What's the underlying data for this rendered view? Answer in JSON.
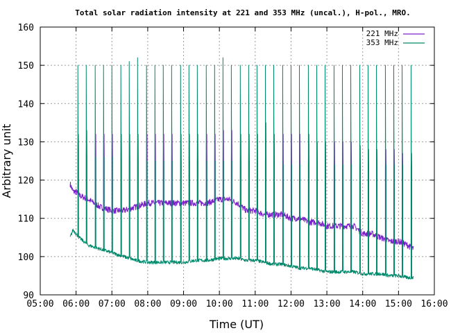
{
  "chart_data": {
    "type": "line",
    "title": "Total solar radiation intensity at 221 and 353 MHz (uncal.), H-pol., MRO.",
    "xlabel": "Time (UT)",
    "ylabel": "Arbitrary unit",
    "xlim": [
      "05:00",
      "16:00"
    ],
    "ylim": [
      90,
      160
    ],
    "x_ticks": [
      "05:00",
      "06:00",
      "07:00",
      "08:00",
      "09:00",
      "10:00",
      "11:00",
      "12:00",
      "13:00",
      "14:00",
      "15:00",
      "16:00"
    ],
    "y_ticks": [
      90,
      100,
      110,
      120,
      130,
      140,
      150,
      160
    ],
    "grid": true,
    "legend_position": "top-right",
    "series": [
      {
        "name": "221 MHz",
        "color": "#7b20c8",
        "x": [
          "05:50",
          "05:55",
          "06:00",
          "06:05",
          "06:20",
          "06:40",
          "07:00",
          "07:20",
          "07:40",
          "08:00",
          "08:20",
          "08:40",
          "09:00",
          "09:20",
          "09:40",
          "10:00",
          "10:15",
          "10:30",
          "10:45",
          "11:00",
          "11:15",
          "11:30",
          "11:45",
          "12:00",
          "12:15",
          "12:30",
          "12:45",
          "13:00",
          "13:15",
          "13:30",
          "13:45",
          "14:00",
          "14:15",
          "14:30",
          "14:45",
          "15:00",
          "15:15",
          "15:25"
        ],
        "values": [
          119,
          117,
          117,
          116,
          115,
          113,
          112,
          112,
          113,
          114,
          114,
          114,
          114,
          114,
          114,
          115,
          115,
          114,
          112,
          112,
          111,
          111,
          111,
          110,
          110,
          109,
          109,
          108,
          108,
          108,
          108,
          106,
          106,
          105,
          104,
          104,
          103,
          102
        ]
      },
      {
        "name": "353 MHz",
        "color": "#00886a",
        "x": [
          "05:50",
          "05:55",
          "06:00",
          "06:05",
          "06:20",
          "06:40",
          "07:00",
          "07:20",
          "07:40",
          "08:00",
          "08:20",
          "08:40",
          "09:00",
          "09:20",
          "09:40",
          "10:00",
          "10:15",
          "10:30",
          "10:45",
          "11:00",
          "11:15",
          "11:30",
          "11:45",
          "12:00",
          "12:15",
          "12:30",
          "12:45",
          "13:00",
          "13:15",
          "13:30",
          "13:45",
          "14:00",
          "14:15",
          "14:30",
          "14:45",
          "15:00",
          "15:15",
          "15:25"
        ],
        "values": [
          105,
          107,
          106,
          105,
          103,
          102,
          101,
          100,
          99,
          98.5,
          98.5,
          98.5,
          98.5,
          99,
          99,
          99.5,
          99.5,
          99.5,
          99,
          99,
          98.5,
          98,
          98,
          97.5,
          97,
          97,
          96.5,
          96,
          96,
          96,
          96,
          95.5,
          95.5,
          95.5,
          95,
          95,
          94.5,
          94.5
        ]
      }
    ],
    "calibration_pulses": {
      "times": [
        "06:03",
        "06:17",
        "06:32",
        "06:46",
        "07:00",
        "07:15",
        "07:29",
        "07:43",
        "07:58",
        "08:12",
        "08:26",
        "08:40",
        "08:55",
        "09:09",
        "09:23",
        "09:38",
        "09:52",
        "10:06",
        "10:20",
        "10:35",
        "10:49",
        "11:03",
        "11:17",
        "11:31",
        "11:46",
        "12:00",
        "12:14",
        "12:29",
        "12:43",
        "12:57",
        "13:12",
        "13:26",
        "13:40",
        "13:55",
        "14:09",
        "14:23",
        "14:38",
        "14:52",
        "15:06",
        "15:21"
      ],
      "peak_353": [
        150,
        150,
        150,
        150,
        150,
        150,
        151,
        152,
        150,
        150,
        150,
        150,
        150,
        150,
        150,
        150,
        150,
        152,
        150,
        150,
        150,
        150,
        150,
        150,
        150,
        150,
        150,
        150,
        150,
        150,
        150,
        150,
        150,
        150,
        150,
        150,
        150,
        150,
        150,
        150
      ],
      "low_221": [
        128,
        126,
        126,
        126,
        126,
        125,
        125,
        125,
        124,
        124,
        124,
        124,
        124,
        124,
        124,
        125,
        124,
        124,
        124,
        124,
        124,
        124,
        124,
        123,
        123,
        124,
        124,
        123,
        123,
        123,
        123,
        123,
        124,
        123,
        123,
        123,
        123,
        123,
        123,
        123
      ],
      "high_221": [
        132,
        133,
        132,
        132,
        132,
        132,
        132,
        132,
        132,
        132,
        132,
        132,
        132,
        132,
        132,
        132,
        132,
        133,
        133,
        132,
        132,
        132,
        135,
        132,
        132,
        132,
        132,
        132,
        130,
        130,
        130,
        130,
        130,
        129,
        128,
        128,
        128,
        128,
        127,
        127
      ],
      "plateau_353": [
        126,
        126,
        126,
        126,
        126,
        126,
        125,
        125,
        125,
        125,
        125,
        125,
        125,
        125,
        125,
        125,
        125,
        125,
        125,
        125,
        125,
        125,
        125,
        124,
        124,
        124,
        124,
        124,
        124,
        124,
        124,
        124,
        124,
        124,
        124,
        124,
        124,
        124,
        124,
        124
      ]
    }
  }
}
